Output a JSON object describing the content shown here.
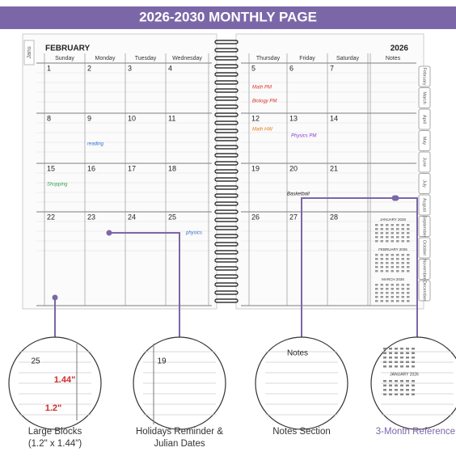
{
  "header": {
    "title": "2026-2030 MONTHLY PAGE"
  },
  "planner": {
    "month": "FEBRUARY",
    "year": "2026",
    "left_tab": "Janu",
    "left_days": [
      "Sunday",
      "Monday",
      "Tuesday",
      "Wednesday"
    ],
    "right_days": [
      "Thursday",
      "Friday",
      "Saturday"
    ],
    "notes_label": "Notes",
    "left_dates": [
      [
        1,
        2,
        3,
        4
      ],
      [
        8,
        9,
        10,
        11
      ],
      [
        15,
        16,
        17,
        18
      ],
      [
        22,
        23,
        24,
        25
      ]
    ],
    "right_dates": [
      [
        5,
        6,
        7
      ],
      [
        12,
        13,
        14
      ],
      [
        19,
        20,
        21
      ],
      [
        26,
        27,
        28
      ]
    ],
    "tabs": [
      "February",
      "March",
      "April",
      "May",
      "June",
      "July",
      "August",
      "September",
      "October",
      "November",
      "December"
    ],
    "mini_calendars": [
      "JANUARY 2026",
      "FEBRUARY 2026",
      "MARCH 2026"
    ],
    "entries": [
      {
        "text": "reading",
        "color": "#2e6fd1"
      },
      {
        "text": "Math PM",
        "color": "#d9342b"
      },
      {
        "text": "Biology PM",
        "color": "#d9342b"
      },
      {
        "text": "Physics PM",
        "color": "#8a3cc9"
      },
      {
        "text": "Shopping",
        "color": "#2e9e4a"
      },
      {
        "text": "physics",
        "color": "#2e6fd1"
      },
      {
        "text": "Math HW",
        "color": "#e07b1a"
      },
      {
        "text": "Basketball",
        "color": "#222222"
      }
    ]
  },
  "callouts": [
    {
      "caption": [
        "Large Blocks",
        "(1.2\" x 1.44\")"
      ],
      "inset": [
        "25",
        "1.44\"",
        "1.2\""
      ]
    },
    {
      "caption": [
        "Holidays Reminder &",
        "Julian Dates"
      ],
      "inset": [
        "19"
      ]
    },
    {
      "caption": [
        "Notes Section"
      ],
      "inset": [
        "Notes"
      ]
    },
    {
      "caption": [
        "3-Month Reference"
      ],
      "inset": [
        "JANUARY 2026"
      ]
    }
  ]
}
